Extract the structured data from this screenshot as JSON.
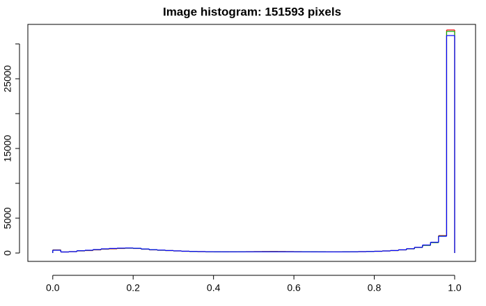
{
  "chart_data": {
    "type": "histogram",
    "title": "Image histogram: 151593 pixels",
    "bins": [
      0,
      0.02,
      0.04,
      0.06,
      0.08,
      0.1,
      0.12,
      0.14,
      0.16,
      0.18,
      0.2,
      0.22,
      0.24,
      0.26,
      0.28,
      0.3,
      0.32,
      0.34,
      0.36,
      0.38,
      0.4,
      0.42,
      0.44,
      0.46,
      0.48,
      0.5,
      0.52,
      0.54,
      0.56,
      0.58,
      0.6,
      0.62,
      0.64,
      0.66,
      0.68,
      0.7,
      0.72,
      0.74,
      0.76,
      0.78,
      0.8,
      0.82,
      0.84,
      0.86,
      0.88,
      0.9,
      0.92,
      0.94,
      0.96,
      0.98,
      1.0
    ],
    "series": [
      {
        "color": "#ff0000",
        "values": [
          450,
          150,
          200,
          300,
          350,
          450,
          550,
          600,
          650,
          700,
          650,
          550,
          450,
          400,
          350,
          300,
          250,
          220,
          200,
          180,
          170,
          170,
          180,
          190,
          200,
          210,
          220,
          230,
          220,
          210,
          200,
          190,
          180,
          170,
          160,
          160,
          170,
          180,
          200,
          220,
          250,
          300,
          350,
          450,
          600,
          800,
          1100,
          1500,
          2500,
          32000
        ]
      },
      {
        "color": "#00aa00",
        "values": [
          420,
          150,
          200,
          320,
          380,
          480,
          580,
          640,
          680,
          700,
          660,
          560,
          460,
          400,
          350,
          300,
          250,
          220,
          200,
          180,
          170,
          170,
          175,
          180,
          190,
          195,
          200,
          205,
          200,
          195,
          190,
          185,
          180,
          170,
          160,
          160,
          170,
          180,
          200,
          220,
          250,
          300,
          350,
          450,
          600,
          800,
          1100,
          1500,
          2450,
          31800
        ]
      },
      {
        "color": "#0000ff",
        "values": [
          400,
          150,
          200,
          330,
          400,
          500,
          600,
          660,
          700,
          720,
          680,
          580,
          480,
          420,
          360,
          310,
          260,
          230,
          210,
          190,
          180,
          175,
          175,
          175,
          180,
          180,
          180,
          180,
          180,
          180,
          175,
          175,
          170,
          165,
          160,
          160,
          170,
          180,
          200,
          220,
          250,
          300,
          360,
          460,
          620,
          820,
          1150,
          1550,
          2400,
          31200
        ]
      }
    ],
    "xlim": [
      -0.062,
      1.052
    ],
    "ylim": [
      -1200,
      32800
    ],
    "xticks": [
      {
        "value": 0,
        "label": "0.0"
      },
      0.2,
      0.4,
      0.6,
      0.8,
      {
        "value": 1,
        "label": "1.0"
      }
    ],
    "yticks": [
      0,
      5000,
      15000,
      25000
    ],
    "yminor_ticks": [
      10000,
      20000,
      30000
    ]
  }
}
